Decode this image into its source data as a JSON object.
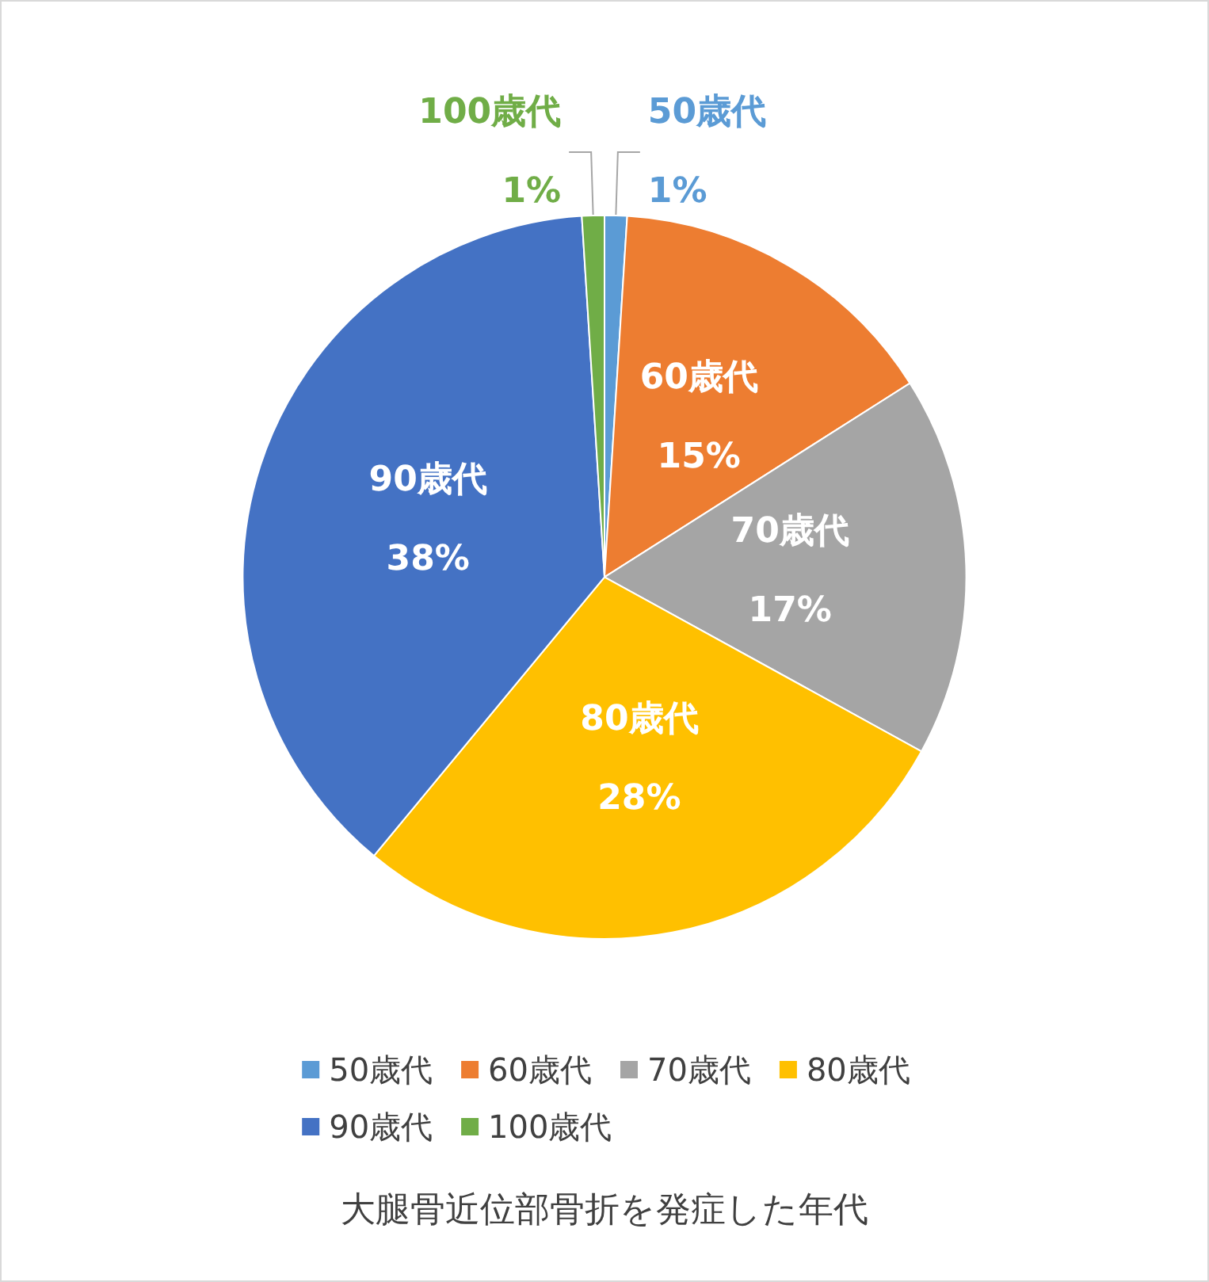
{
  "chart_data": {
    "type": "pie",
    "title": "大腿骨近位部骨折を発症した年代",
    "categories": [
      "50歳代",
      "60歳代",
      "70歳代",
      "80歳代",
      "90歳代",
      "100歳代"
    ],
    "values": [
      1,
      15,
      17,
      28,
      38,
      1
    ],
    "value_labels": [
      "1%",
      "15%",
      "17%",
      "28%",
      "38%",
      "1%"
    ],
    "colors": [
      "#5b9bd5",
      "#ed7d31",
      "#a5a5a5",
      "#ffc000",
      "#4472c4",
      "#70ad47"
    ],
    "legend": "bottom"
  }
}
